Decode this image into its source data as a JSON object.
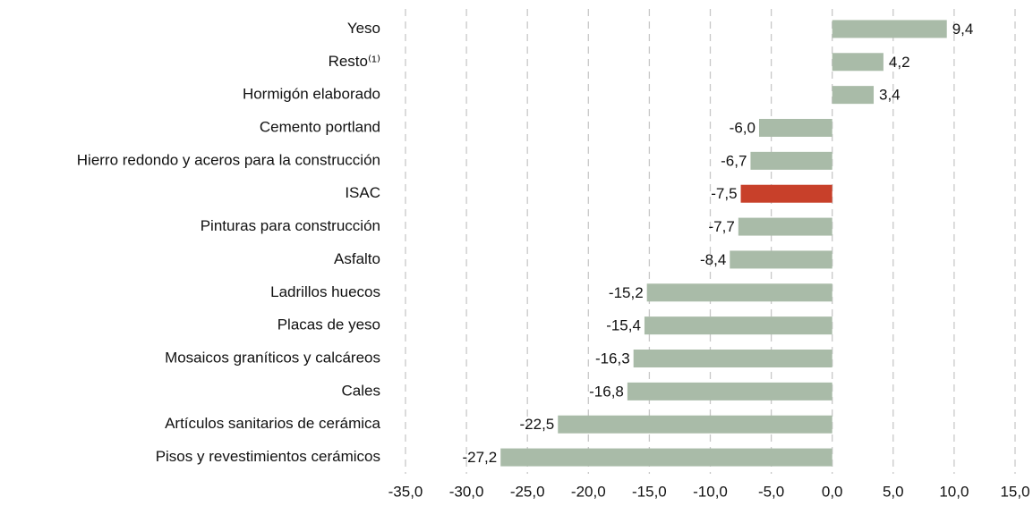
{
  "chart_data": {
    "type": "bar",
    "orientation": "horizontal",
    "categories": [
      "Yeso",
      "Resto⁽¹⁾",
      "Hormigón elaborado",
      "Cemento portland",
      "Hierro redondo y aceros para la construcción",
      "ISAC",
      "Pinturas para construcción",
      "Asfalto",
      "Ladrillos huecos",
      "Placas de yeso",
      "Mosaicos graníticos y calcáreos",
      "Cales",
      "Artículos sanitarios de cerámica",
      "Pisos y revestimientos cerámicos"
    ],
    "values": [
      9.4,
      4.2,
      3.4,
      -6.0,
      -6.7,
      -7.5,
      -7.7,
      -8.4,
      -15.2,
      -15.4,
      -16.3,
      -16.8,
      -22.5,
      -27.2
    ],
    "value_labels": [
      "9,4",
      "4,2",
      "3,4",
      "-6,0",
      "-6,7",
      "-7,5",
      "-7,7",
      "-8,4",
      "-15,2",
      "-15,4",
      "-16,3",
      "-16,8",
      "-22,5",
      "-27,2"
    ],
    "colors": [
      "#a9bba8",
      "#a9bba8",
      "#a9bba8",
      "#a9bba8",
      "#a9bba8",
      "#c8402a",
      "#a9bba8",
      "#a9bba8",
      "#a9bba8",
      "#a9bba8",
      "#a9bba8",
      "#a9bba8",
      "#a9bba8",
      "#a9bba8"
    ],
    "xlim": [
      -35,
      15
    ],
    "xticks": [
      {
        "value": -35,
        "label": "-35,0"
      },
      {
        "value": -30,
        "label": "-30,0"
      },
      {
        "value": -25,
        "label": "-25,0"
      },
      {
        "value": -20,
        "label": "-20,0"
      },
      {
        "value": -15,
        "label": "-15,0"
      },
      {
        "value": -10,
        "label": "-10,0"
      },
      {
        "value": -5,
        "label": "-5,0"
      },
      {
        "value": 0,
        "label": "0,0"
      },
      {
        "value": 5,
        "label": "5,0"
      },
      {
        "value": 10,
        "label": "10,0"
      },
      {
        "value": 15,
        "label": "15,0"
      }
    ],
    "grid": true
  }
}
